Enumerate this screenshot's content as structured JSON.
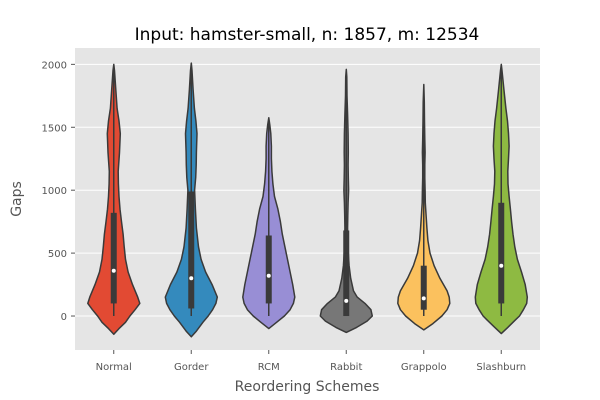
{
  "chart_data": {
    "type": "violin",
    "title": "Input: hamster-small, n: 1857, m: 12534",
    "xlabel": "Reordering Schemes",
    "ylabel": "Gaps",
    "ylim": [
      -270,
      2130
    ],
    "yticks": [
      0,
      500,
      1000,
      1500,
      2000
    ],
    "grid": true,
    "background": "#e5e5e5",
    "categories": [
      "Normal",
      "Gorder",
      "RCM",
      "Rabbit",
      "Grappolo",
      "Slashburn"
    ],
    "series": [
      {
        "category": "Normal",
        "color": "#e24a33",
        "min": 0,
        "q1": 100,
        "median": 360,
        "q3": 820,
        "max": 1990,
        "extent": [
          -145,
          2000
        ],
        "density": [
          [
            -145,
            0
          ],
          [
            -100,
            0.2
          ],
          [
            -50,
            0.45
          ],
          [
            0,
            0.62
          ],
          [
            50,
            0.82
          ],
          [
            100,
            1.0
          ],
          [
            150,
            0.92
          ],
          [
            250,
            0.72
          ],
          [
            350,
            0.55
          ],
          [
            450,
            0.45
          ],
          [
            550,
            0.4
          ],
          [
            650,
            0.36
          ],
          [
            750,
            0.3
          ],
          [
            850,
            0.24
          ],
          [
            950,
            0.2
          ],
          [
            1050,
            0.18
          ],
          [
            1150,
            0.17
          ],
          [
            1300,
            0.22
          ],
          [
            1450,
            0.25
          ],
          [
            1550,
            0.2
          ],
          [
            1650,
            0.13
          ],
          [
            1800,
            0.08
          ],
          [
            1950,
            0.03
          ],
          [
            2000,
            0
          ]
        ]
      },
      {
        "category": "Gorder",
        "color": "#348abd",
        "min": 0,
        "q1": 60,
        "median": 300,
        "q3": 990,
        "max": 2000,
        "extent": [
          -165,
          2010
        ],
        "density": [
          [
            -165,
            0
          ],
          [
            -120,
            0.2
          ],
          [
            -50,
            0.45
          ],
          [
            0,
            0.65
          ],
          [
            50,
            0.82
          ],
          [
            100,
            0.95
          ],
          [
            150,
            1.0
          ],
          [
            250,
            0.8
          ],
          [
            350,
            0.55
          ],
          [
            450,
            0.38
          ],
          [
            550,
            0.28
          ],
          [
            700,
            0.2
          ],
          [
            850,
            0.16
          ],
          [
            1000,
            0.13
          ],
          [
            1100,
            0.17
          ],
          [
            1200,
            0.19
          ],
          [
            1300,
            0.2
          ],
          [
            1450,
            0.22
          ],
          [
            1550,
            0.18
          ],
          [
            1650,
            0.12
          ],
          [
            1800,
            0.07
          ],
          [
            1950,
            0.03
          ],
          [
            2010,
            0
          ]
        ]
      },
      {
        "category": "RCM",
        "color": "#988ed5",
        "min": 0,
        "q1": 100,
        "median": 320,
        "q3": 640,
        "max": 1560,
        "extent": [
          -100,
          1575
        ],
        "density": [
          [
            -100,
            0
          ],
          [
            -50,
            0.3
          ],
          [
            0,
            0.6
          ],
          [
            50,
            0.82
          ],
          [
            100,
            0.95
          ],
          [
            150,
            1.0
          ],
          [
            250,
            0.92
          ],
          [
            350,
            0.82
          ],
          [
            450,
            0.72
          ],
          [
            550,
            0.62
          ],
          [
            650,
            0.52
          ],
          [
            750,
            0.45
          ],
          [
            850,
            0.35
          ],
          [
            950,
            0.22
          ],
          [
            1050,
            0.16
          ],
          [
            1150,
            0.12
          ],
          [
            1250,
            0.1
          ],
          [
            1350,
            0.1
          ],
          [
            1450,
            0.08
          ],
          [
            1520,
            0.04
          ],
          [
            1575,
            0
          ]
        ]
      },
      {
        "category": "Rabbit",
        "color": "#777777",
        "min": 0,
        "q1": 0,
        "median": 120,
        "q3": 680,
        "max": 1950,
        "extent": [
          -130,
          1960
        ],
        "density": [
          [
            -130,
            0
          ],
          [
            -90,
            0.4
          ],
          [
            -40,
            0.8
          ],
          [
            0,
            1.0
          ],
          [
            50,
            0.95
          ],
          [
            100,
            0.72
          ],
          [
            150,
            0.42
          ],
          [
            200,
            0.28
          ],
          [
            300,
            0.17
          ],
          [
            400,
            0.11
          ],
          [
            500,
            0.08
          ],
          [
            600,
            0.06
          ],
          [
            700,
            0.05
          ],
          [
            800,
            0.06
          ],
          [
            900,
            0.07
          ],
          [
            1000,
            0.09
          ],
          [
            1100,
            0.08
          ],
          [
            1200,
            0.07
          ],
          [
            1300,
            0.08
          ],
          [
            1450,
            0.07
          ],
          [
            1600,
            0.05
          ],
          [
            1750,
            0.03
          ],
          [
            1900,
            0.02
          ],
          [
            1960,
            0
          ]
        ]
      },
      {
        "category": "Grappolo",
        "color": "#fbc15e",
        "min": 0,
        "q1": 50,
        "median": 140,
        "q3": 400,
        "max": 1830,
        "extent": [
          -110,
          1840
        ],
        "density": [
          [
            -110,
            0
          ],
          [
            -60,
            0.35
          ],
          [
            0,
            0.7
          ],
          [
            50,
            0.9
          ],
          [
            100,
            1.0
          ],
          [
            150,
            0.98
          ],
          [
            200,
            0.9
          ],
          [
            300,
            0.62
          ],
          [
            400,
            0.4
          ],
          [
            500,
            0.24
          ],
          [
            600,
            0.16
          ],
          [
            700,
            0.12
          ],
          [
            800,
            0.09
          ],
          [
            900,
            0.06
          ],
          [
            1000,
            0.05
          ],
          [
            1100,
            0.04
          ],
          [
            1200,
            0.04
          ],
          [
            1300,
            0.05
          ],
          [
            1400,
            0.04
          ],
          [
            1550,
            0.03
          ],
          [
            1700,
            0.02
          ],
          [
            1840,
            0
          ]
        ]
      },
      {
        "category": "Slashburn",
        "color": "#8eba42",
        "min": 0,
        "q1": 100,
        "median": 400,
        "q3": 900,
        "max": 1990,
        "extent": [
          -140,
          2000
        ],
        "density": [
          [
            -140,
            0
          ],
          [
            -90,
            0.25
          ],
          [
            -30,
            0.55
          ],
          [
            0,
            0.7
          ],
          [
            50,
            0.85
          ],
          [
            100,
            0.98
          ],
          [
            150,
            1.0
          ],
          [
            250,
            0.92
          ],
          [
            350,
            0.78
          ],
          [
            450,
            0.62
          ],
          [
            550,
            0.52
          ],
          [
            650,
            0.45
          ],
          [
            750,
            0.4
          ],
          [
            850,
            0.35
          ],
          [
            950,
            0.3
          ],
          [
            1050,
            0.26
          ],
          [
            1150,
            0.25
          ],
          [
            1250,
            0.28
          ],
          [
            1350,
            0.3
          ],
          [
            1450,
            0.28
          ],
          [
            1550,
            0.24
          ],
          [
            1650,
            0.18
          ],
          [
            1800,
            0.1
          ],
          [
            1950,
            0.03
          ],
          [
            2000,
            0
          ]
        ]
      }
    ]
  }
}
